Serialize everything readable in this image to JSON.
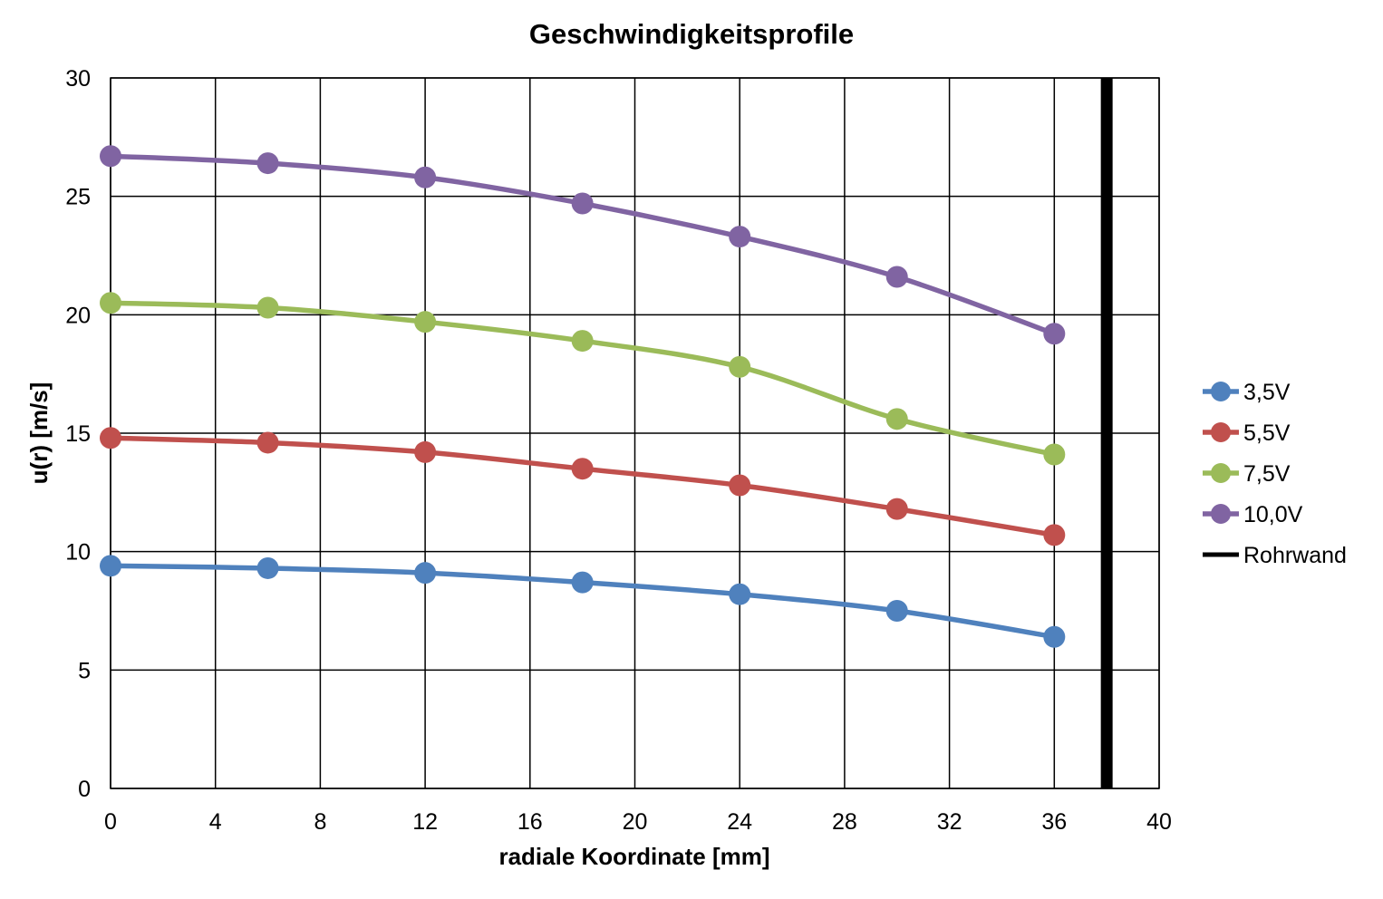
{
  "chart_data": {
    "type": "line",
    "title": "Geschwindigkeitsprofile",
    "xlabel": "radiale Koordinate [mm]",
    "ylabel": "u(r) [m/s]",
    "xlim": [
      0,
      40
    ],
    "ylim": [
      0,
      30
    ],
    "xticks": [
      0,
      4,
      8,
      12,
      16,
      20,
      24,
      28,
      32,
      36,
      40
    ],
    "yticks": [
      0,
      5,
      10,
      15,
      20,
      25,
      30
    ],
    "grid": true,
    "legend_position": "right",
    "x": [
      0,
      6,
      12,
      18,
      24,
      30,
      36
    ],
    "series": [
      {
        "name": "3,5V",
        "color": "#4f81bd",
        "values": [
          9.4,
          9.3,
          9.1,
          8.7,
          8.2,
          7.5,
          6.4
        ]
      },
      {
        "name": "5,5V",
        "color": "#c0504d",
        "values": [
          14.8,
          14.6,
          14.2,
          13.5,
          12.8,
          11.8,
          10.7
        ]
      },
      {
        "name": "7,5V",
        "color": "#9bbb59",
        "values": [
          20.5,
          20.3,
          19.7,
          18.9,
          17.8,
          15.6,
          14.1
        ]
      },
      {
        "name": "10,0V",
        "color": "#8064a2",
        "values": [
          26.7,
          26.4,
          25.8,
          24.7,
          23.3,
          21.6,
          19.2
        ]
      }
    ],
    "wall": {
      "name": "Rohrwand",
      "color": "#000000",
      "x": 38,
      "y": [
        0,
        30
      ]
    }
  }
}
